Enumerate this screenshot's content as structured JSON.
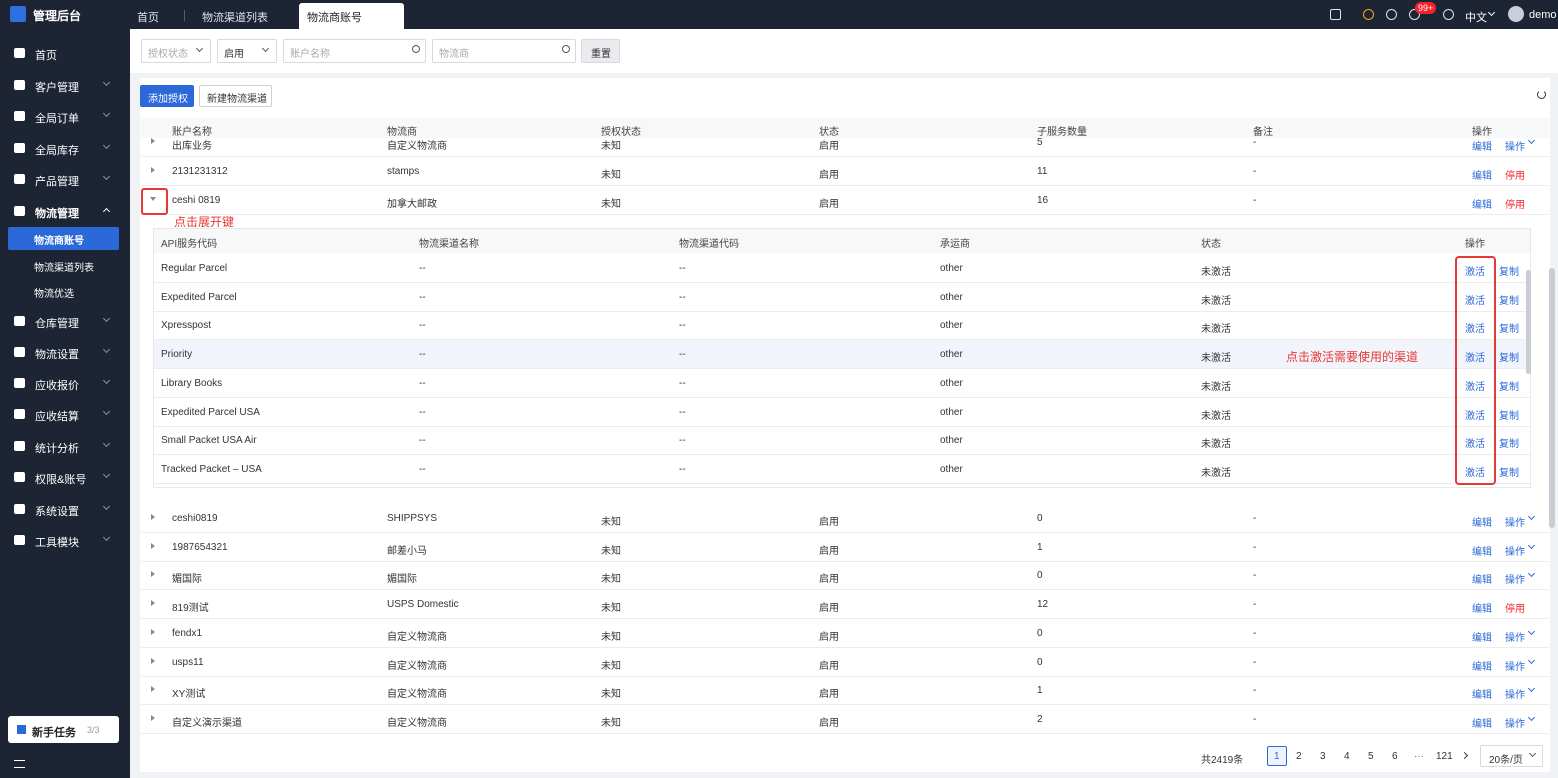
{
  "sidebar": {
    "logo": "管理后台",
    "menu": [
      "首页",
      "客户管理",
      "全局订单",
      "全局库存",
      "产品管理",
      "物流管理",
      "仓库管理",
      "物流设置",
      "应收报价",
      "应收结算",
      "统计分析",
      "权限&账号",
      "系统设置",
      "工具模块"
    ],
    "submenu": [
      "物流商账号",
      "物流渠道列表",
      "物流优选"
    ],
    "task": {
      "label": "新手任务",
      "progress": "3/3"
    }
  },
  "tabs": [
    "首页",
    "物流渠道列表",
    "物流商账号"
  ],
  "topbar": {
    "badge": "99+",
    "language": "中文",
    "user": "demo"
  },
  "filters": {
    "auth_status": "授权状态",
    "status": "启用",
    "account_name": "账户名称",
    "carrier": "物流商",
    "reset": "重置"
  },
  "toolbar": {
    "add": "添加授权",
    "new_channel": "新建物流渠道"
  },
  "table": {
    "headers": [
      "账户名称",
      "物流商",
      "授权状态",
      "状态",
      "子服务数量",
      "备注",
      "操作"
    ],
    "rows": [
      [
        "出库业务",
        "自定义物流商",
        "未知",
        "启用",
        "5",
        "-",
        "编辑",
        "操作"
      ],
      [
        "2131231312",
        "stamps",
        "未知",
        "启用",
        "11",
        "-",
        "编辑",
        "停用"
      ],
      [
        "ceshi 0819",
        "加拿大邮政",
        "未知",
        "启用",
        "16",
        "-",
        "编辑",
        "停用"
      ],
      [
        "ceshi0819",
        "SHIPPSYS",
        "未知",
        "启用",
        "0",
        "-",
        "编辑",
        "操作"
      ],
      [
        "1987654321",
        "邮差小马",
        "未知",
        "启用",
        "1",
        "-",
        "编辑",
        "操作"
      ],
      [
        "媚国际",
        "媚国际",
        "未知",
        "启用",
        "0",
        "-",
        "编辑",
        "操作"
      ],
      [
        "819测试",
        "USPS Domestic",
        "未知",
        "启用",
        "12",
        "-",
        "编辑",
        "停用"
      ],
      [
        "fendx1",
        "自定义物流商",
        "未知",
        "启用",
        "0",
        "-",
        "编辑",
        "操作"
      ],
      [
        "usps11",
        "自定义物流商",
        "未知",
        "启用",
        "0",
        "-",
        "编辑",
        "操作"
      ],
      [
        "XY测试",
        "自定义物流商",
        "未知",
        "启用",
        "1",
        "-",
        "编辑",
        "操作"
      ],
      [
        "自定义演示渠道",
        "自定义物流商",
        "未知",
        "启用",
        "2",
        "-",
        "编辑",
        "操作"
      ]
    ]
  },
  "subtable": {
    "headers": [
      "API服务代码",
      "物流渠道名称",
      "物流渠道代码",
      "承运商",
      "状态",
      "操作"
    ],
    "rows": [
      [
        "Regular Parcel",
        "--",
        "--",
        "other",
        "未激活",
        "激活",
        "复制"
      ],
      [
        "Expedited Parcel",
        "--",
        "--",
        "other",
        "未激活",
        "激活",
        "复制"
      ],
      [
        "Xpresspost",
        "--",
        "--",
        "other",
        "未激活",
        "激活",
        "复制"
      ],
      [
        "Priority",
        "--",
        "--",
        "other",
        "未激活",
        "激活",
        "复制"
      ],
      [
        "Library Books",
        "--",
        "--",
        "other",
        "未激活",
        "激活",
        "复制"
      ],
      [
        "Expedited Parcel USA",
        "--",
        "--",
        "other",
        "未激活",
        "激活",
        "复制"
      ],
      [
        "Small Packet USA Air",
        "--",
        "--",
        "other",
        "未激活",
        "激活",
        "复制"
      ],
      [
        "Tracked Packet – USA",
        "--",
        "--",
        "other",
        "未激活",
        "激活",
        "复制"
      ]
    ]
  },
  "annotations": {
    "expand": "点击展开键",
    "activate": "点击激活需要使用的渠道"
  },
  "pagination": {
    "total": "共2419条",
    "pages": [
      "1",
      "2",
      "3",
      "4",
      "5",
      "6",
      "121"
    ],
    "ellipsis": "···",
    "page_size": "20条/页"
  }
}
